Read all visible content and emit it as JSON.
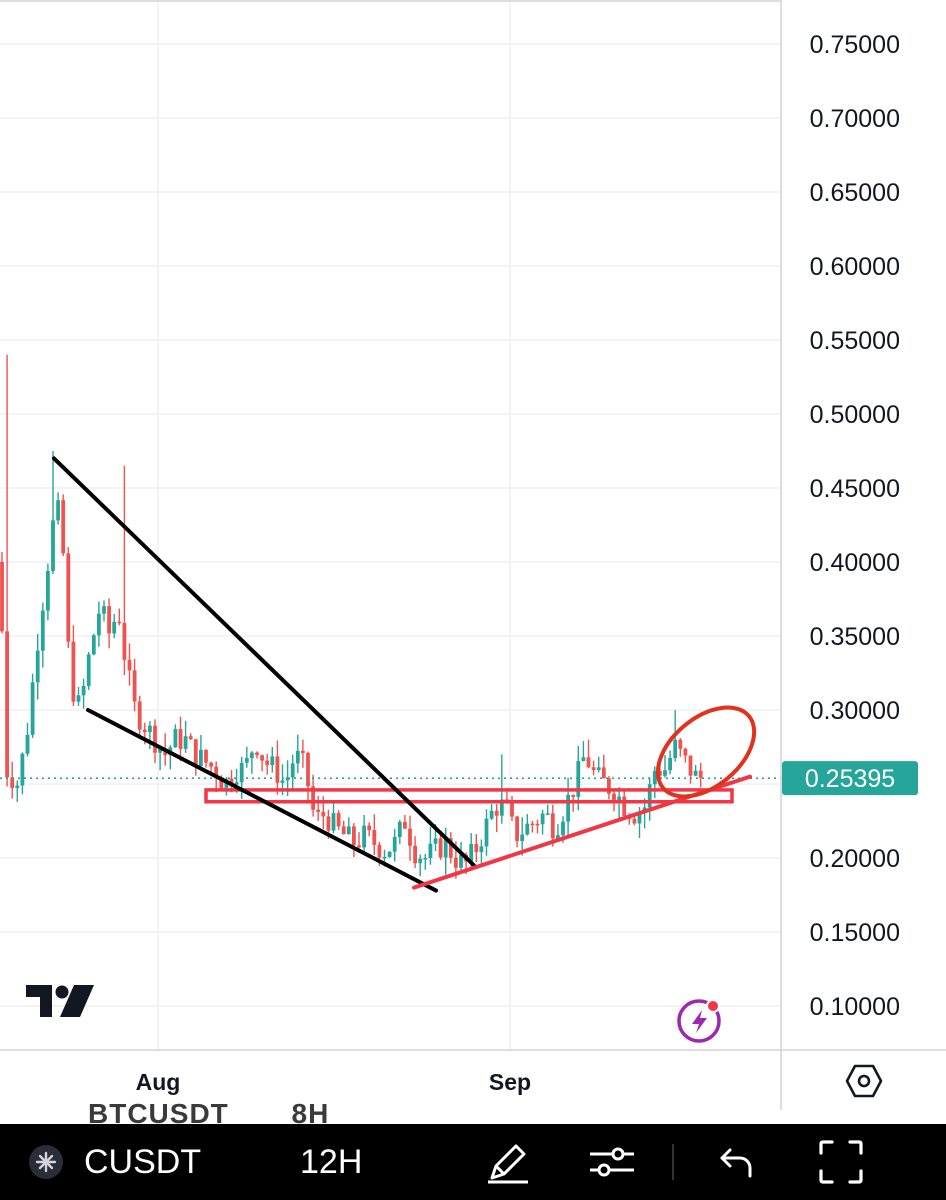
{
  "chart_data": {
    "type": "candlestick",
    "symbol": "BTCUSDT",
    "interval": "8H",
    "y_ticks": [
      "0.75000",
      "0.70000",
      "0.65000",
      "0.60000",
      "0.55000",
      "0.50000",
      "0.45000",
      "0.40000",
      "0.35000",
      "0.30000",
      "0.20000",
      "0.15000",
      "0.10000"
    ],
    "x_ticks": [
      "Aug",
      "Sep"
    ],
    "ylim": [
      0.08,
      0.78
    ],
    "last_price": "0.25395",
    "last_price_value": 0.25395,
    "colors": {
      "up": "#26a69a",
      "down": "#ef5350",
      "grid": "#eef0f3",
      "last_price": "#26a69a",
      "trendline": "#000000",
      "support": "#f23645",
      "highlight": "#e0321f"
    },
    "price_path": [
      [
        0,
        0.4
      ],
      [
        6,
        0.26
      ],
      [
        18,
        0.25
      ],
      [
        28,
        0.29
      ],
      [
        38,
        0.35
      ],
      [
        48,
        0.4
      ],
      [
        56,
        0.44
      ],
      [
        62,
        0.42
      ],
      [
        70,
        0.32
      ],
      [
        80,
        0.3
      ],
      [
        90,
        0.34
      ],
      [
        100,
        0.37
      ],
      [
        110,
        0.35
      ],
      [
        118,
        0.37
      ],
      [
        126,
        0.33
      ],
      [
        135,
        0.3
      ],
      [
        145,
        0.29
      ],
      [
        155,
        0.28
      ],
      [
        165,
        0.27
      ],
      [
        175,
        0.28
      ],
      [
        185,
        0.28
      ],
      [
        195,
        0.27
      ],
      [
        205,
        0.265
      ],
      [
        215,
        0.26
      ],
      [
        225,
        0.25
      ],
      [
        235,
        0.26
      ],
      [
        245,
        0.26
      ],
      [
        255,
        0.28
      ],
      [
        265,
        0.265
      ],
      [
        275,
        0.26
      ],
      [
        285,
        0.25
      ],
      [
        295,
        0.27
      ],
      [
        305,
        0.26
      ],
      [
        315,
        0.225
      ],
      [
        325,
        0.23
      ],
      [
        335,
        0.22
      ],
      [
        345,
        0.215
      ],
      [
        355,
        0.21
      ],
      [
        365,
        0.215
      ],
      [
        375,
        0.21
      ],
      [
        385,
        0.205
      ],
      [
        395,
        0.21
      ],
      [
        405,
        0.225
      ],
      [
        415,
        0.205
      ],
      [
        425,
        0.2
      ],
      [
        435,
        0.205
      ],
      [
        445,
        0.21
      ],
      [
        455,
        0.2
      ],
      [
        465,
        0.195
      ],
      [
        475,
        0.205
      ],
      [
        485,
        0.22
      ],
      [
        495,
        0.235
      ],
      [
        505,
        0.235
      ],
      [
        515,
        0.215
      ],
      [
        525,
        0.22
      ],
      [
        535,
        0.225
      ],
      [
        545,
        0.23
      ],
      [
        555,
        0.22
      ],
      [
        565,
        0.235
      ],
      [
        575,
        0.25
      ],
      [
        585,
        0.27
      ],
      [
        595,
        0.255
      ],
      [
        605,
        0.25
      ],
      [
        615,
        0.245
      ],
      [
        625,
        0.235
      ],
      [
        635,
        0.23
      ],
      [
        645,
        0.235
      ],
      [
        655,
        0.26
      ],
      [
        665,
        0.26
      ],
      [
        675,
        0.275
      ],
      [
        685,
        0.265
      ],
      [
        695,
        0.255
      ],
      [
        703,
        0.254
      ]
    ],
    "trendlines": [
      {
        "from": [
          "Jul 28",
          0.47
        ],
        "to": [
          "Aug 28",
          0.195
        ],
        "color": "black"
      },
      {
        "from": [
          "Jul 31",
          0.3
        ],
        "to": [
          "Aug 25",
          0.178
        ],
        "color": "black"
      },
      {
        "from": [
          "Aug 25",
          0.18
        ],
        "to": [
          "Sep 18",
          0.255
        ],
        "color": "red"
      }
    ],
    "support_zone": [
      0.238,
      0.246
    ],
    "highlight": "ellipse around the latest candles near 0.26–0.30"
  },
  "toolbar": {
    "ghost_symbol": "BTCUSDT",
    "ghost_interval": "8H",
    "symbol": "CUSDT",
    "interval": "12H"
  },
  "icons": [
    "tradingview-logo",
    "lightning-icon",
    "settings-hex-icon",
    "symbol-avatar-icon",
    "pen-icon",
    "sliders-icon",
    "undo-icon",
    "fullscreen-icon"
  ]
}
